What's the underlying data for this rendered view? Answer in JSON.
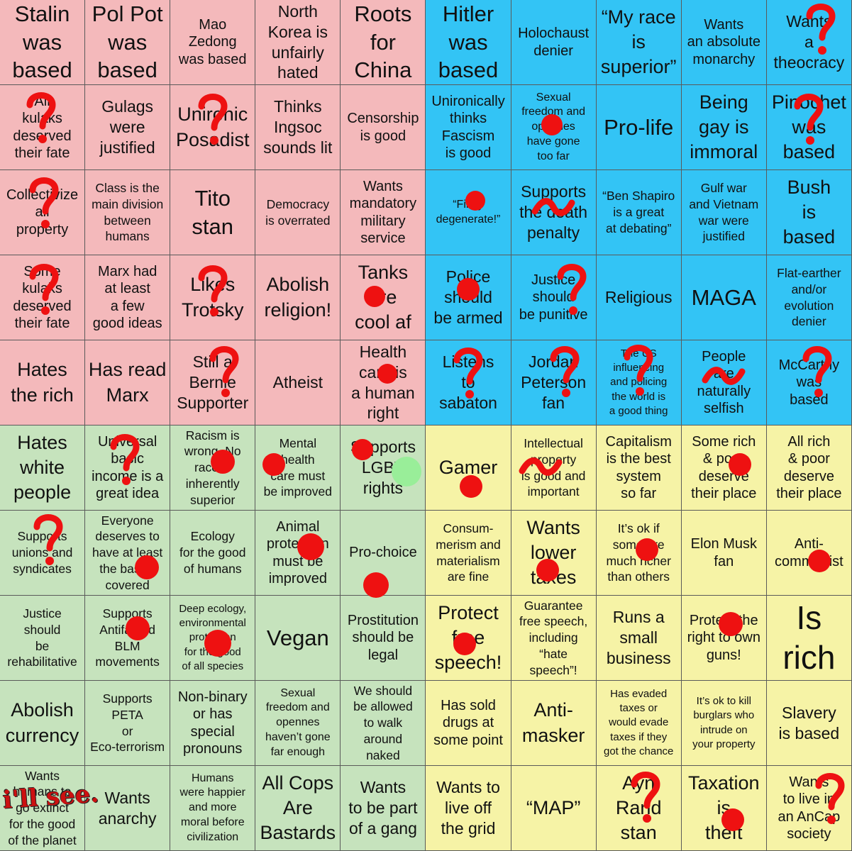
{
  "quadrant_colors": {
    "auth_left": "#f4b9bb",
    "auth_right": "#33c4f5",
    "lib_left": "#c6e3bd",
    "lib_right": "#f6f3a6"
  },
  "mark_colors": {
    "red_dot": "#ee1111",
    "green_dot": "#99ee99"
  },
  "grid": [
    [
      "Stalin\nwas\nbased",
      "Pol Pot\nwas\nbased",
      "Mao\nZedong\nwas based",
      "North\nKorea is\nunfairly\nhated",
      "Roots\nfor\nChina",
      "Hitler\nwas\nbased",
      "Holochaust\ndenier",
      "“My race\nis\nsuperior”",
      "Wants\nan absolute\nmonarchy",
      "Wants\na\ntheocracy"
    ],
    [
      "All\nkulaks\ndeserved\ntheir fate",
      "Gulags\nwere\njustified",
      "Unironic\nPosadist",
      "Thinks\nIngsoc\nsounds lit",
      "Censorship\nis good",
      "Unironically\nthinks\nFascism\nis good",
      "Sexual\nfreedom and\nopennes\nhave gone\ntoo far",
      "Pro-life",
      "Being\ngay is\nimmoral",
      "Pinochet\nwas\nbased"
    ],
    [
      "Collectivize\nall\nproperty",
      "Class is the\nmain division\nbetween\nhumans",
      "Tito\nstan",
      "Democracy\nis overrated",
      "Wants\nmandatory\nmilitary\nservice",
      "“Filthy\ndegenerate!”",
      "Supports\nthe death\npenalty",
      "“Ben Shapiro\nis a great\nat debating”",
      "Gulf war\nand Vietnam\nwar were\njustified",
      "Bush\nis\nbased"
    ],
    [
      "Some\nkulaks\ndeserved\ntheir fate",
      "Marx had\nat least\na few\ngood ideas",
      "Likes\nTrotsky",
      "Abolish\nreligion!",
      "Tanks\nare\ncool af",
      "Police\nshould\nbe armed",
      "Justice\nshould\nbe punitive",
      "Religious",
      "MAGA",
      "Flat-earther\nand/or\nevolution\ndenier"
    ],
    [
      "Hates\nthe rich",
      "Has read\nMarx",
      "Still a\nBernie\nSupporter",
      "Atheist",
      "Health\ncare is\na human\nright",
      "Listens\nto\nsabaton",
      "Jordan\nPeterson\nfan",
      "The US\ninfluencing\nand policing\nthe world is\na good thing",
      "People\nare\nnaturally\nselfish",
      "McCarthy\nwas\nbased"
    ],
    [
      "Hates\nwhite\npeople",
      "Universal\nbasic\nincome is a\ngreat idea",
      "Racism is\nwrong. No\nrace is\ninherently\nsuperior",
      "Mental\nhealth\ncare must\nbe improved",
      "Supports\nLGBT\nrights",
      "Gamer",
      "Intellectual\nproperty\nis good and\nimportant",
      "Capitalism\nis the best\nsystem\nso far",
      "Some rich\n& poor\ndeserve\ntheir place",
      "All rich\n& poor\ndeserve\ntheir place"
    ],
    [
      "Supports\nunions and\nsyndicates",
      "Everyone\ndeserves to\nhave at least\nthe basics\ncovered",
      "Ecology\nfor the good\nof humans",
      "Animal\nprotection\nmust be\nimproved",
      "Pro-choice",
      "Consum-\nmerism and\nmaterialism\nare fine",
      "Wants\nlower\ntaxes",
      "It’s ok if\nsome are\nmuch richer\nthan others",
      "Elon Musk\nfan",
      "Anti-\ncommunist"
    ],
    [
      "Justice\nshould\nbe\nrehabilitative",
      "Supports\nAntifa and\nBLM\nmovements",
      "Deep ecology,\nenvironmental\nprotection\nfor the good\nof all species",
      "Vegan",
      "Prostitution\nshould be\nlegal",
      "Protect\nfree\nspeech!",
      "Guarantee\nfree speech,\nincluding\n“hate\nspeech”!",
      "Runs a\nsmall\nbusiness",
      "Protect the\nright to own\nguns!",
      "Is\nrich"
    ],
    [
      "Abolish\ncurrency",
      "Supports\nPETA\nor\nEco-terrorism",
      "Non-binary\nor has\nspecial\npronouns",
      "Sexual\nfreedom and\nopennes\nhaven’t gone\nfar enough",
      "We should\nbe allowed\nto walk\naround\nnaked",
      "Has sold\ndrugs at\nsome point",
      "Anti-\nmasker",
      "Has evaded\ntaxes or\nwould evade\ntaxes if they\ngot the chance",
      "It’s ok to kill\nburglars who\nintrude on\nyour property",
      "Slavery\nis based"
    ],
    [
      "Wants\nhumans to\ngo extinct\nfor the good\nof the planet",
      "Wants\nanarchy",
      "Humans\nwere happier\nand more\nmoral before\ncivilization",
      "All Cops\nAre\nBastards",
      "Wants\nto be part\nof a gang",
      "Wants to\nlive off\nthe grid",
      "“MAP”",
      "Ayn\nRand\nstan",
      "Taxation\nis\ntheft",
      "Wants\nto live in\nan AnCap\nsociety"
    ]
  ],
  "signature": "i'll\nsee."
}
